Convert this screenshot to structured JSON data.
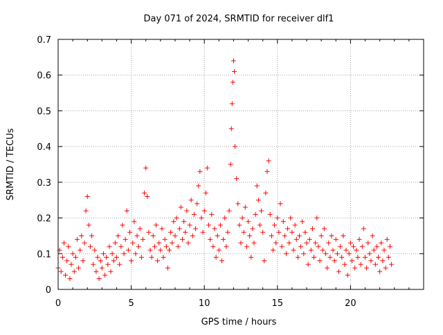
{
  "chart_data": {
    "type": "scatter",
    "title": "Day 071 of 2024, SRMTID for receiver dlf1",
    "xlabel": "GPS time / hours",
    "ylabel": "SRMTID / TECUs",
    "xlim": [
      0,
      25
    ],
    "ylim": [
      0,
      0.7
    ],
    "xticks": [
      0,
      5,
      10,
      15,
      20
    ],
    "yticks": [
      0,
      0.1,
      0.2,
      0.3,
      0.4,
      0.5,
      0.6,
      0.7
    ],
    "xtick_labels": [
      "0",
      "5",
      "10",
      "15",
      "20"
    ],
    "ytick_labels": [
      "0",
      "0.1",
      "0.2",
      "0.3",
      "0.4",
      "0.5",
      "0.6",
      "0.7"
    ],
    "grid": true,
    "marker": "+",
    "color": "#ff0000",
    "series": [
      {
        "name": "SRMTID",
        "x": [
          0.0,
          0.1,
          0.2,
          0.3,
          0.4,
          0.5,
          0.6,
          0.7,
          0.8,
          0.9,
          1.0,
          1.1,
          1.2,
          1.3,
          1.4,
          1.5,
          1.6,
          1.7,
          1.8,
          1.9,
          2.0,
          2.1,
          2.2,
          2.3,
          2.4,
          2.5,
          2.6,
          2.7,
          2.8,
          2.9,
          3.0,
          3.1,
          3.2,
          3.3,
          3.4,
          3.5,
          3.6,
          3.7,
          3.8,
          3.9,
          4.0,
          4.1,
          4.2,
          4.3,
          4.4,
          4.5,
          4.6,
          4.7,
          4.8,
          4.9,
          5.0,
          5.1,
          5.2,
          5.3,
          5.4,
          5.5,
          5.6,
          5.7,
          5.8,
          5.9,
          6.0,
          6.1,
          6.2,
          6.3,
          6.4,
          6.5,
          6.6,
          6.7,
          6.8,
          6.9,
          7.0,
          7.1,
          7.2,
          7.3,
          7.4,
          7.5,
          7.6,
          7.7,
          7.8,
          7.9,
          8.0,
          8.1,
          8.2,
          8.3,
          8.4,
          8.5,
          8.6,
          8.7,
          8.8,
          8.9,
          9.0,
          9.1,
          9.2,
          9.3,
          9.4,
          9.5,
          9.6,
          9.7,
          9.8,
          9.9,
          10.0,
          10.1,
          10.2,
          10.3,
          10.4,
          10.5,
          10.6,
          10.7,
          10.8,
          10.9,
          11.0,
          11.1,
          11.2,
          11.3,
          11.4,
          11.5,
          11.6,
          11.7,
          11.8,
          11.85,
          11.9,
          11.95,
          12.0,
          12.05,
          12.1,
          12.2,
          12.3,
          12.4,
          12.5,
          12.6,
          12.7,
          12.8,
          12.9,
          13.0,
          13.1,
          13.2,
          13.3,
          13.4,
          13.5,
          13.6,
          13.7,
          13.8,
          13.9,
          14.0,
          14.1,
          14.2,
          14.3,
          14.4,
          14.5,
          14.6,
          14.7,
          14.8,
          14.9,
          15.0,
          15.1,
          15.2,
          15.3,
          15.4,
          15.5,
          15.6,
          15.7,
          15.8,
          15.9,
          16.0,
          16.1,
          16.2,
          16.3,
          16.4,
          16.5,
          16.6,
          16.7,
          16.8,
          16.9,
          17.0,
          17.1,
          17.2,
          17.3,
          17.4,
          17.5,
          17.6,
          17.7,
          17.8,
          17.9,
          18.0,
          18.1,
          18.2,
          18.3,
          18.4,
          18.5,
          18.6,
          18.7,
          18.8,
          18.9,
          19.0,
          19.1,
          19.2,
          19.3,
          19.4,
          19.5,
          19.6,
          19.7,
          19.8,
          19.9,
          20.0,
          20.1,
          20.2,
          20.3,
          20.4,
          20.5,
          20.6,
          20.7,
          20.8,
          20.9,
          21.0,
          21.1,
          21.2,
          21.3,
          21.4,
          21.5,
          21.6,
          21.7,
          21.8,
          21.9,
          22.0,
          22.1,
          22.2,
          22.3,
          22.4,
          22.5,
          22.6,
          22.7,
          22.8
        ],
        "y": [
          0.06,
          0.11,
          0.05,
          0.09,
          0.13,
          0.04,
          0.08,
          0.12,
          0.03,
          0.07,
          0.1,
          0.05,
          0.09,
          0.14,
          0.06,
          0.11,
          0.15,
          0.08,
          0.13,
          0.22,
          0.26,
          0.18,
          0.12,
          0.15,
          0.07,
          0.11,
          0.05,
          0.09,
          0.03,
          0.08,
          0.06,
          0.1,
          0.04,
          0.09,
          0.07,
          0.12,
          0.05,
          0.1,
          0.08,
          0.13,
          0.09,
          0.15,
          0.07,
          0.12,
          0.18,
          0.1,
          0.14,
          0.22,
          0.11,
          0.16,
          0.08,
          0.13,
          0.19,
          0.1,
          0.15,
          0.12,
          0.17,
          0.09,
          0.14,
          0.27,
          0.34,
          0.26,
          0.16,
          0.11,
          0.09,
          0.15,
          0.12,
          0.18,
          0.08,
          0.13,
          0.11,
          0.17,
          0.09,
          0.14,
          0.12,
          0.06,
          0.11,
          0.16,
          0.13,
          0.19,
          0.15,
          0.2,
          0.12,
          0.17,
          0.23,
          0.14,
          0.19,
          0.16,
          0.22,
          0.13,
          0.18,
          0.25,
          0.15,
          0.21,
          0.17,
          0.24,
          0.29,
          0.33,
          0.2,
          0.16,
          0.22,
          0.27,
          0.34,
          0.18,
          0.14,
          0.21,
          0.12,
          0.17,
          0.09,
          0.15,
          0.11,
          0.18,
          0.08,
          0.14,
          0.2,
          0.12,
          0.16,
          0.22,
          0.35,
          0.45,
          0.52,
          0.58,
          0.64,
          0.61,
          0.4,
          0.31,
          0.24,
          0.18,
          0.13,
          0.2,
          0.16,
          0.23,
          0.12,
          0.19,
          0.15,
          0.09,
          0.17,
          0.13,
          0.21,
          0.29,
          0.25,
          0.18,
          0.22,
          0.16,
          0.08,
          0.27,
          0.33,
          0.36,
          0.21,
          0.15,
          0.11,
          0.18,
          0.13,
          0.2,
          0.16,
          0.24,
          0.12,
          0.19,
          0.15,
          0.1,
          0.17,
          0.13,
          0.2,
          0.16,
          0.11,
          0.18,
          0.14,
          0.09,
          0.15,
          0.12,
          0.19,
          0.1,
          0.16,
          0.13,
          0.07,
          0.14,
          0.11,
          0.17,
          0.09,
          0.13,
          0.2,
          0.12,
          0.08,
          0.15,
          0.11,
          0.17,
          0.1,
          0.06,
          0.13,
          0.09,
          0.15,
          0.11,
          0.08,
          0.14,
          0.1,
          0.05,
          0.12,
          0.09,
          0.15,
          0.07,
          0.11,
          0.04,
          0.1,
          0.13,
          0.08,
          0.12,
          0.06,
          0.11,
          0.09,
          0.14,
          0.07,
          0.12,
          0.17,
          0.09,
          0.06,
          0.13,
          0.1,
          0.08,
          0.15,
          0.11,
          0.07,
          0.12,
          0.09,
          0.05,
          0.13,
          0.08,
          0.11,
          0.06,
          0.14,
          0.09,
          0.12,
          0.07
        ]
      }
    ]
  }
}
